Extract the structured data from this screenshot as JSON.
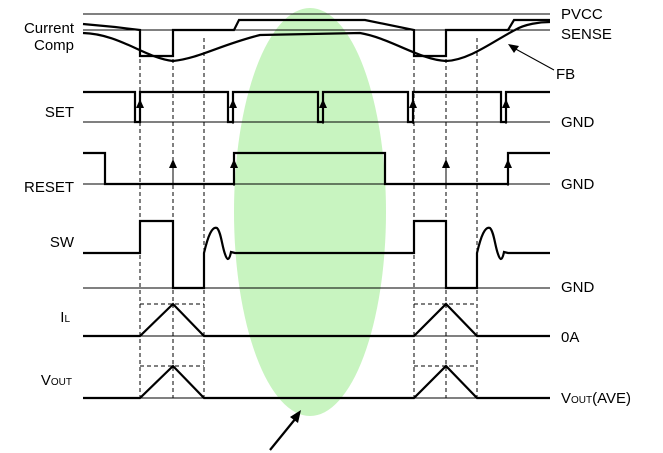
{
  "labels": {
    "current_comp_line1": "Current",
    "current_comp_line2": "Comp",
    "pvcc": "PVCC",
    "sense": "SENSE",
    "fb": "FB",
    "set": "SET",
    "reset": "RESET",
    "sw": "SW",
    "il_main": "I",
    "il_sub": "L",
    "vout_main": "V",
    "vout_sub": "OUT",
    "gnd_set": "GND",
    "gnd_reset": "GND",
    "gnd_sw": "GND",
    "zero_a": "0A",
    "vout_ave_main": "V",
    "vout_ave_sub": "OUT",
    "vout_ave_suffix": "(AVE)"
  },
  "colors": {
    "highlight": "#c8f4c0",
    "stroke": "#000000"
  }
}
